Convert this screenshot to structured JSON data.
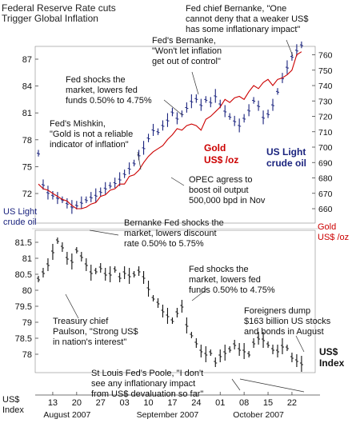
{
  "header": {
    "title_line1": "Federal Reserve Rate cuts",
    "title_line2": "Trigger Global Inflation"
  },
  "colors": {
    "gold_line": "#cc0000",
    "oil_bars": "#1a237e",
    "dollar_bars": "#111111",
    "gold_label": "#cc0000",
    "oil_label": "#1a237e",
    "bottom_axis_label": "#1a237e"
  },
  "chart_data": [
    {
      "type": "line",
      "name": "Gold",
      "series_label_lines": [
        "Gold",
        "US$ /oz"
      ],
      "right_axis_label_lines": [
        "Gold",
        "US$ /oz"
      ],
      "axis": "right",
      "ylim": [
        652,
        770
      ],
      "yticks": [
        660,
        670,
        680,
        690,
        700,
        710,
        720,
        730,
        740,
        750,
        760
      ],
      "x": [
        0,
        1,
        2,
        3,
        4,
        5,
        6,
        7,
        8,
        9,
        10,
        11,
        12,
        13,
        14,
        15,
        16,
        17,
        18,
        19,
        20,
        21,
        22,
        23,
        24,
        25,
        26,
        27,
        28,
        29,
        30,
        31,
        32,
        33,
        34,
        35,
        36,
        37,
        38,
        39,
        40,
        41,
        42,
        43,
        44,
        45,
        46,
        47,
        48,
        49,
        50,
        51,
        52,
        53,
        54,
        55
      ],
      "values": [
        676,
        673,
        672,
        670,
        668,
        666,
        665,
        662,
        660,
        660,
        661,
        663,
        664,
        668,
        669,
        672,
        673,
        676,
        676,
        681,
        682,
        685,
        690,
        694,
        697,
        699,
        701,
        705,
        708,
        712,
        711,
        714,
        715,
        714,
        711,
        718,
        720,
        723,
        726,
        731,
        729,
        732,
        733,
        731,
        736,
        740,
        738,
        742,
        744,
        740,
        744,
        745,
        747,
        750,
        760,
        762
      ]
    },
    {
      "type": "bar",
      "name": "US Light crude oil",
      "series_label_lines": [
        "US Light",
        "crude oil"
      ],
      "left_axis_label_lines": [
        "US Light",
        "crude oil"
      ],
      "axis": "left",
      "ylim": [
        69.5,
        89.0
      ],
      "yticks": [
        72,
        75,
        78,
        81,
        84,
        87
      ],
      "x": [
        0,
        1,
        2,
        3,
        4,
        5,
        6,
        7,
        8,
        9,
        10,
        11,
        12,
        13,
        14,
        15,
        16,
        17,
        18,
        19,
        20,
        21,
        22,
        23,
        24,
        25,
        26,
        27,
        28,
        29,
        30,
        31,
        32,
        33,
        34,
        35,
        36,
        37,
        38,
        39,
        40,
        41,
        42,
        43,
        44,
        45,
        46,
        47,
        48,
        49,
        50,
        51,
        52,
        53,
        54,
        55
      ],
      "values": [
        76.5,
        73.0,
        72.1,
        71.8,
        71.5,
        71.3,
        70.9,
        70.5,
        70.7,
        71.0,
        71.3,
        71.6,
        71.8,
        72.2,
        72.6,
        72.9,
        73.2,
        73.6,
        74.2,
        74.8,
        75.4,
        76.3,
        77.1,
        78.2,
        79.1,
        78.9,
        79.6,
        80.2,
        81.1,
        80.4,
        80.9,
        81.6,
        82.3,
        82.6,
        81.9,
        82.5,
        82.2,
        82.9,
        82.0,
        81.2,
        80.6,
        80.1,
        79.6,
        80.4,
        81.3,
        82.4,
        81.8,
        80.5,
        80.9,
        81.9,
        83.4,
        84.9,
        86.1,
        87.3,
        88.0,
        88.6
      ]
    },
    {
      "type": "bar",
      "name": "US$ Index",
      "series_label_lines": [
        "US$",
        "Index"
      ],
      "axis_label_lines": [
        "US$",
        "Index"
      ],
      "ylim": [
        77.45,
        82.1
      ],
      "yticks": [
        78,
        78.5,
        79,
        79.5,
        80,
        80.5,
        81,
        81.5
      ],
      "x": [
        0,
        1,
        2,
        3,
        4,
        5,
        6,
        7,
        8,
        9,
        10,
        11,
        12,
        13,
        14,
        15,
        16,
        17,
        18,
        19,
        20,
        21,
        22,
        23,
        24,
        25,
        26,
        27,
        28,
        29,
        30,
        31,
        32,
        33,
        34,
        35,
        36,
        37,
        38,
        39,
        40,
        41,
        42,
        43,
        44,
        45,
        46,
        47,
        48,
        49,
        50,
        51,
        52,
        53,
        54,
        55
      ],
      "values": [
        80.35,
        80.55,
        80.8,
        81.2,
        81.55,
        81.35,
        81.0,
        80.9,
        81.25,
        81.05,
        80.8,
        80.55,
        80.6,
        80.7,
        80.5,
        80.5,
        80.65,
        80.4,
        80.55,
        80.45,
        80.5,
        80.6,
        80.4,
        80.05,
        79.75,
        79.6,
        79.35,
        79.2,
        79.05,
        79.3,
        79.5,
        78.9,
        78.6,
        78.35,
        78.1,
        78.0,
        78.05,
        77.75,
        77.95,
        78.05,
        78.15,
        78.3,
        78.15,
        78.1,
        78.0,
        78.35,
        78.5,
        78.45,
        78.3,
        78.15,
        78.1,
        78.25,
        78.2,
        77.9,
        77.8,
        77.7
      ]
    }
  ],
  "x_axis": {
    "tick_labels": [
      "13",
      "20",
      "27",
      "03",
      "10",
      "17",
      "24",
      "01",
      "08",
      "15",
      "22"
    ],
    "tick_positions": [
      3,
      8,
      13,
      18,
      23,
      28,
      33,
      38,
      43,
      48,
      53
    ],
    "month_labels": [
      "August 2007",
      "September 2007",
      "October 2007"
    ],
    "month_centers": [
      6,
      27,
      46
    ]
  },
  "annotations": [
    {
      "lines": [
        "Fed chief Bernanke, \"One",
        "cannot deny that a weaker US$",
        "has some inflationary impact\""
      ]
    },
    {
      "lines": [
        "Fed's Bernanke,",
        "\"Won't let inflation",
        "get out of control\""
      ]
    },
    {
      "lines": [
        "Fed shocks the",
        "market, lowers fed",
        "funds 0.50% to 4.75%"
      ]
    },
    {
      "lines": [
        "Fed's Mishkin,",
        "\"Gold is not a reliable",
        "indicator of inflation\""
      ]
    },
    {
      "lines": [
        "OPEC agress to",
        "boost oil output",
        "500,000 bpd in Nov"
      ]
    },
    {
      "lines": [
        "Bernanke Fed shocks the",
        "market, lowers discount",
        "rate 0.50% to 5.75%"
      ]
    },
    {
      "lines": [
        "Fed shocks the",
        "market, lowers fed",
        "funds 0.50% to 4.75%"
      ]
    },
    {
      "lines": [
        "Treasury chief",
        "Paulson, \"Strong US$",
        "in nation's interest\""
      ]
    },
    {
      "lines": [
        "Foreigners dump",
        "$163 billion US stocks",
        "and bonds in August"
      ]
    },
    {
      "lines": [
        "St Louis Fed's Poole, \"I don't",
        "see any inflationary impact",
        "from US$ devaluation so far\""
      ]
    }
  ]
}
